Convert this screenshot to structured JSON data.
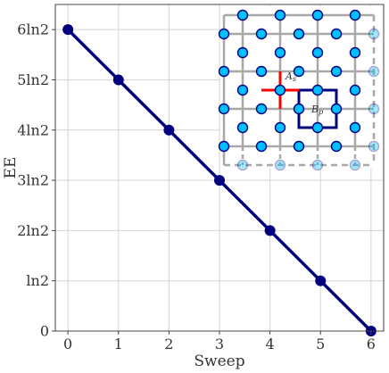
{
  "chart_data": {
    "type": "line",
    "xlabel": "Sweep",
    "ylabel": "EE",
    "x": [
      0,
      1,
      2,
      3,
      4,
      5,
      6
    ],
    "xticks": [
      "0",
      "1",
      "2",
      "3",
      "4",
      "5",
      "6"
    ],
    "yticks": [
      "0",
      "ln2",
      "2ln2",
      "3ln2",
      "4ln2",
      "5ln2",
      "6ln2"
    ],
    "xlim": [
      -0.25,
      6.25
    ],
    "ylim_ln2_units": [
      0,
      6.5
    ],
    "grid": true,
    "series": [
      {
        "values_ln2_units": [
          6,
          5,
          4,
          3,
          2,
          1,
          0
        ],
        "color": "#00007f"
      }
    ],
    "inset": {
      "position": "top-right",
      "labels": {
        "star_operator": "A",
        "star_subscript": "s",
        "plaquette_operator": "B",
        "plaquette_subscript": "p"
      },
      "colors": {
        "lattice": "#a8a8a8",
        "qubit_fill": "#00bfff",
        "qubit_stroke": "#00007f",
        "star": "#ff0000",
        "plaquette": "#00007f"
      }
    }
  }
}
